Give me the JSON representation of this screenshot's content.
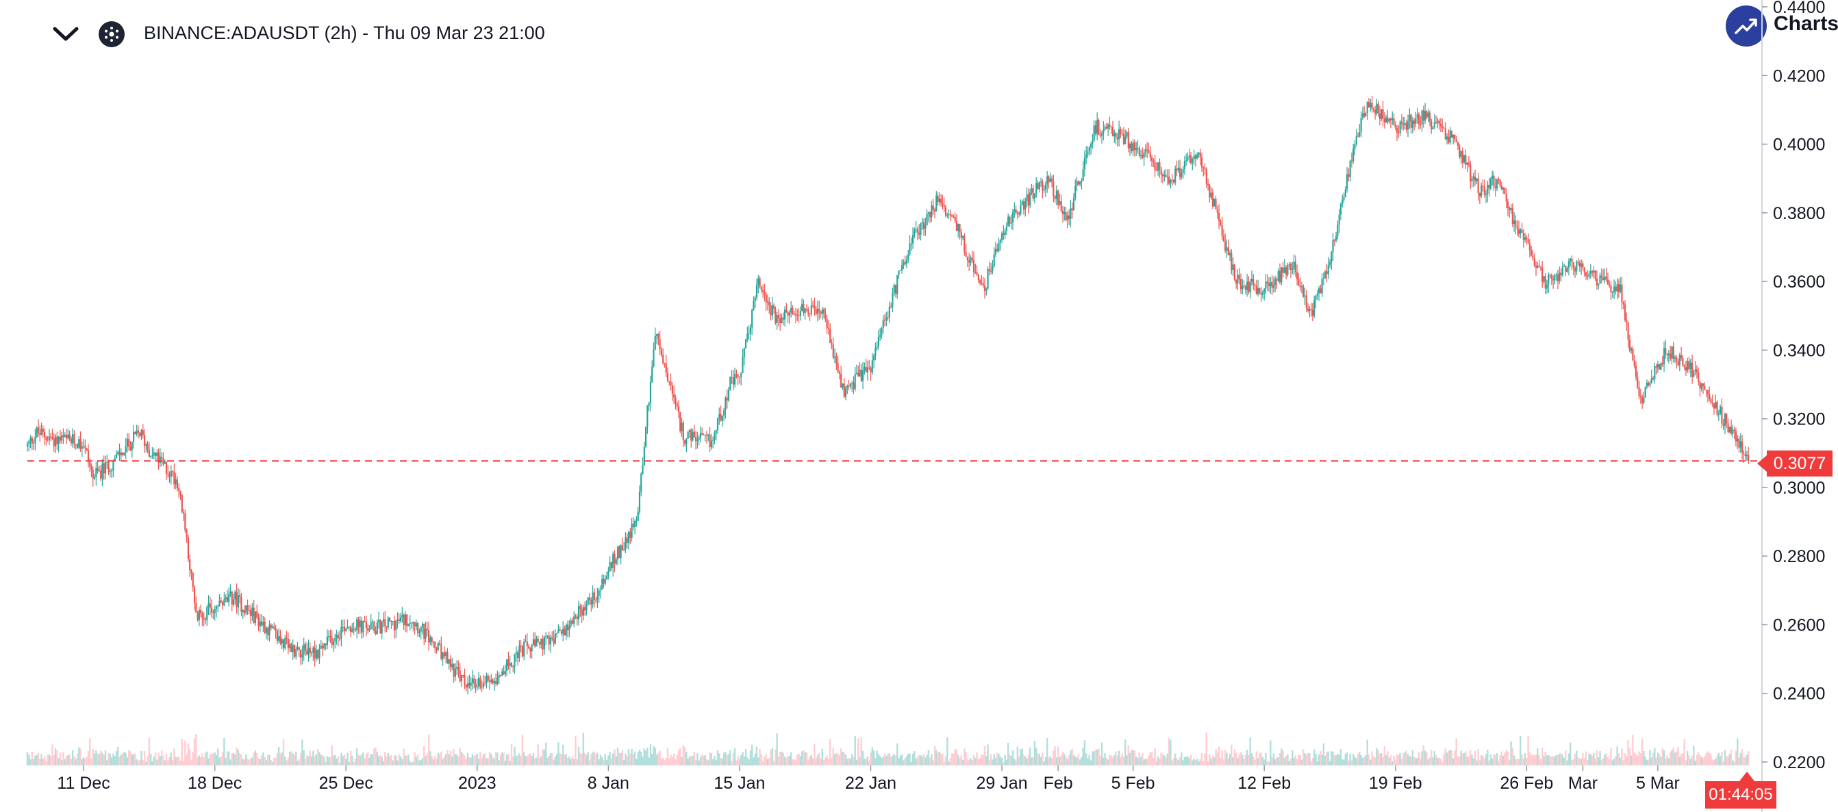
{
  "header": {
    "symbol_line": "BINANCE:ADAUSDT (2h) - Thu 09 Mar 23 21:00",
    "brand": "Charts",
    "icons": {
      "collapse": "chevron-down-icon",
      "symbol": "cardano-logo-icon",
      "brand": "trending-up-logo-icon"
    }
  },
  "colors": {
    "up": "#26a69a",
    "down": "#ef5350",
    "last_price": "#ef3b3b",
    "axis_text": "#131722",
    "volume_up": "#b2dfdb",
    "volume_down": "#ffcdd2"
  },
  "last_price": {
    "label": "0.3077",
    "countdown": "01:44:05"
  },
  "chart_data": {
    "type": "candlestick",
    "symbol": "BINANCE:ADAUSDT",
    "interval": "2h",
    "ylim": [
      0.22,
      0.44
    ],
    "y_ticks": [
      "0.4400",
      "0.4200",
      "0.4000",
      "0.3800",
      "0.3600",
      "0.3400",
      "0.3200",
      "0.3000",
      "0.2800",
      "0.2600",
      "0.2400",
      "0.2200"
    ],
    "x_ticks": [
      "11 Dec",
      "18 Dec",
      "25 Dec",
      "2023",
      "8 Jan",
      "15 Jan",
      "22 Jan",
      "29 Jan",
      "Feb",
      "5 Feb",
      "12 Feb",
      "19 Feb",
      "26 Feb",
      "Mar",
      "5 Mar"
    ],
    "x_tick_days": [
      3,
      10,
      17,
      24,
      31,
      38,
      45,
      52,
      55,
      59,
      66,
      73,
      80,
      83,
      87
    ],
    "days_span": [
      0,
      91.9
    ],
    "price_path_days": [
      0,
      0.5,
      1.5,
      3,
      3.5,
      4.5,
      6,
      6.5,
      8,
      8.5,
      9,
      11,
      14,
      15.5,
      17,
      18.5,
      20.5,
      22,
      23.5,
      25,
      26.5,
      28,
      29.5,
      30.5,
      31.2,
      32.5,
      33.5,
      35,
      36.5,
      37.5,
      38,
      39,
      40,
      41,
      42.5,
      43.5,
      45,
      47,
      48.5,
      49.5,
      51,
      52,
      53,
      54.5,
      55.5,
      57,
      58.5,
      60,
      61,
      62.5,
      63,
      64.5,
      66,
      67.5,
      68.5,
      69.5,
      70.5,
      71.5,
      73,
      74.5,
      76,
      77.5,
      78.5,
      79.5,
      81,
      82.5,
      84,
      85,
      85.5,
      86,
      87.5,
      89,
      90.5,
      91.9
    ],
    "price_path_values": [
      0.312,
      0.316,
      0.314,
      0.313,
      0.303,
      0.307,
      0.316,
      0.311,
      0.302,
      0.285,
      0.262,
      0.268,
      0.253,
      0.252,
      0.26,
      0.259,
      0.262,
      0.252,
      0.242,
      0.245,
      0.253,
      0.255,
      0.264,
      0.27,
      0.278,
      0.29,
      0.345,
      0.315,
      0.313,
      0.33,
      0.332,
      0.36,
      0.348,
      0.352,
      0.35,
      0.328,
      0.335,
      0.37,
      0.383,
      0.377,
      0.357,
      0.375,
      0.382,
      0.39,
      0.378,
      0.405,
      0.402,
      0.395,
      0.39,
      0.398,
      0.388,
      0.36,
      0.358,
      0.365,
      0.35,
      0.367,
      0.392,
      0.413,
      0.405,
      0.408,
      0.402,
      0.386,
      0.39,
      0.375,
      0.36,
      0.365,
      0.36,
      0.358,
      0.342,
      0.325,
      0.34,
      0.333,
      0.32,
      0.3077
    ]
  }
}
